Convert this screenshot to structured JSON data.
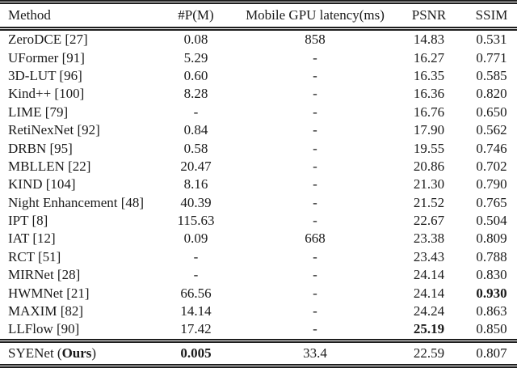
{
  "colors": {
    "text": "#1a1a1a",
    "rule": "#1e1e1e",
    "background": "#ffffff"
  },
  "table": {
    "columns": [
      "Method",
      "#P(M)",
      "Mobile GPU latency(ms)",
      "PSNR",
      "SSIM"
    ],
    "rows": [
      {
        "method": "ZeroDCE [27]",
        "params": "0.08",
        "latency": "858",
        "psnr": "14.83",
        "ssim": "0.531",
        "bold": []
      },
      {
        "method": "UFormer [91]",
        "params": "5.29",
        "latency": "-",
        "psnr": "16.27",
        "ssim": "0.771",
        "bold": []
      },
      {
        "method": "3D-LUT [96]",
        "params": "0.60",
        "latency": "-",
        "psnr": "16.35",
        "ssim": "0.585",
        "bold": []
      },
      {
        "method": "Kind++ [100]",
        "params": "8.28",
        "latency": "-",
        "psnr": "16.36",
        "ssim": "0.820",
        "bold": []
      },
      {
        "method": "LIME [79]",
        "params": "-",
        "latency": "-",
        "psnr": "16.76",
        "ssim": "0.650",
        "bold": []
      },
      {
        "method": "RetiNexNet [92]",
        "params": "0.84",
        "latency": "-",
        "psnr": "17.90",
        "ssim": "0.562",
        "bold": []
      },
      {
        "method": "DRBN [95]",
        "params": "0.58",
        "latency": "-",
        "psnr": "19.55",
        "ssim": "0.746",
        "bold": []
      },
      {
        "method": "MBLLEN [22]",
        "params": "20.47",
        "latency": "-",
        "psnr": "20.86",
        "ssim": "0.702",
        "bold": []
      },
      {
        "method": "KIND [104]",
        "params": "8.16",
        "latency": "-",
        "psnr": "21.30",
        "ssim": "0.790",
        "bold": []
      },
      {
        "method": "Night Enhancement [48]",
        "params": "40.39",
        "latency": "-",
        "psnr": "21.52",
        "ssim": "0.765",
        "bold": []
      },
      {
        "method": "IPT [8]",
        "params": "115.63",
        "latency": "-",
        "psnr": "22.67",
        "ssim": "0.504",
        "bold": []
      },
      {
        "method": "IAT [12]",
        "params": "0.09",
        "latency": "668",
        "psnr": "23.38",
        "ssim": "0.809",
        "bold": []
      },
      {
        "method": "RCT [51]",
        "params": "-",
        "latency": "-",
        "psnr": "23.43",
        "ssim": "0.788",
        "bold": []
      },
      {
        "method": "MIRNet [28]",
        "params": "-",
        "latency": "-",
        "psnr": "24.14",
        "ssim": "0.830",
        "bold": []
      },
      {
        "method": "HWMNet [21]",
        "params": "66.56",
        "latency": "-",
        "psnr": "24.14",
        "ssim": "0.930",
        "bold": [
          "ssim"
        ]
      },
      {
        "method": "MAXIM [82]",
        "params": "14.14",
        "latency": "-",
        "psnr": "24.24",
        "ssim": "0.863",
        "bold": []
      },
      {
        "method": "LLFlow [90]",
        "params": "17.42",
        "latency": "-",
        "psnr": "25.19",
        "ssim": "0.850",
        "bold": [
          "psnr"
        ]
      }
    ],
    "footer": {
      "method_segments": [
        {
          "text": "SYENet (",
          "bold": false
        },
        {
          "text": "Ours",
          "bold": true
        },
        {
          "text": ")",
          "bold": false
        }
      ],
      "params": "0.005",
      "latency": "33.4",
      "psnr": "22.59",
      "ssim": "0.807",
      "bold": [
        "params"
      ]
    }
  }
}
